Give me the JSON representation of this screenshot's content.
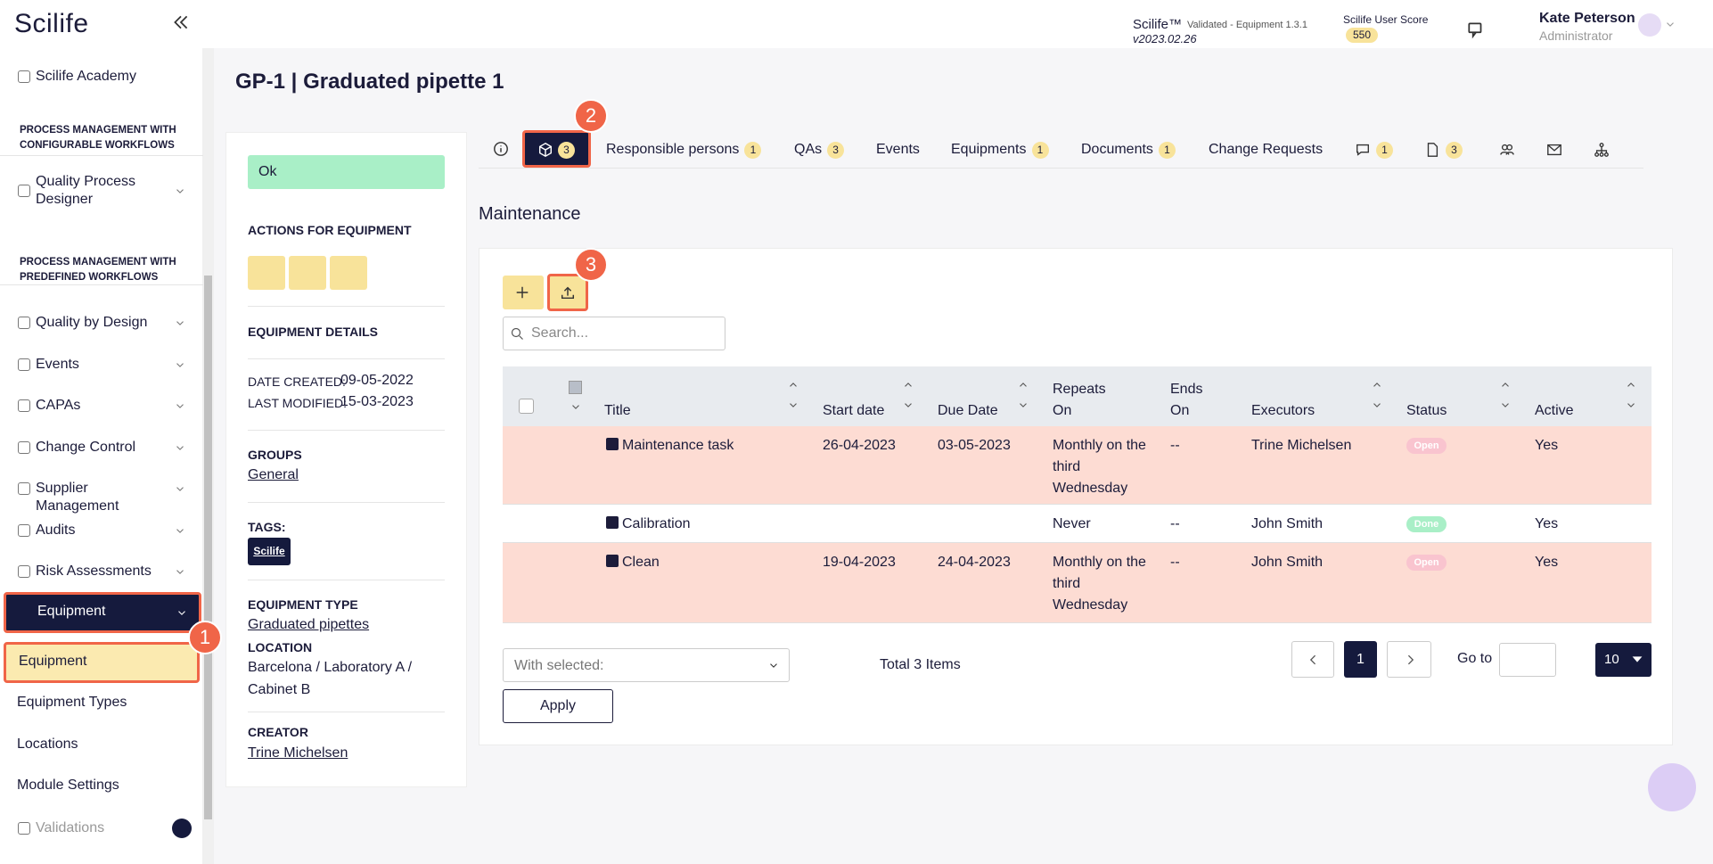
{
  "header": {
    "brand": "Scilife",
    "product": "Scilife™",
    "validated": "Validated - Equipment 1.3.1",
    "version": "v2023.02.26",
    "score_label": "Scilife User Score",
    "score": "550",
    "user": "Kate Peterson",
    "role": "Administrator"
  },
  "sidebar": {
    "items": [
      {
        "label": "Scilife Academy",
        "kind": "item"
      },
      {
        "label": "PROCESS MANAGEMENT WITH CONFIGURABLE WORKFLOWS",
        "kind": "section"
      },
      {
        "label": "Quality Process Designer",
        "kind": "group"
      },
      {
        "label": "PROCESS MANAGEMENT WITH PREDEFINED WORKFLOWS",
        "kind": "section"
      },
      {
        "label": "Quality by Design",
        "kind": "group"
      },
      {
        "label": "Events",
        "kind": "group"
      },
      {
        "label": "CAPAs",
        "kind": "group"
      },
      {
        "label": "Change Control",
        "kind": "group"
      },
      {
        "label": "Supplier Management",
        "kind": "group"
      },
      {
        "label": "Audits",
        "kind": "group"
      },
      {
        "label": "Risk Assessments",
        "kind": "group"
      },
      {
        "label": "Equipment",
        "kind": "active"
      },
      {
        "label": "Equipment",
        "kind": "subactive"
      },
      {
        "label": "Equipment Types",
        "kind": "sub"
      },
      {
        "label": "Locations",
        "kind": "sub"
      },
      {
        "label": "Module Settings",
        "kind": "sub"
      },
      {
        "label": "Validations",
        "kind": "locked"
      }
    ]
  },
  "page_title": "GP-1 | Graduated pipette 1",
  "panel": {
    "status": "Ok",
    "actions_title": "ACTIONS FOR EQUIPMENT",
    "details_title": "EQUIPMENT DETAILS",
    "date_created_label": "DATE CREATED:",
    "date_created": "09-05-2022",
    "last_modified_label": "LAST MODIFIED:",
    "last_modified": "15-03-2023",
    "groups_label": "GROUPS",
    "groups": "General",
    "tags_label": "TAGS:",
    "tag": "Scilife",
    "type_label": "EQUIPMENT TYPE",
    "type": "Graduated pipettes",
    "location_label": "LOCATION",
    "location_line1": "Barcelona / Laboratory A /",
    "location_line2": "Cabinet B",
    "creator_label": "CREATOR",
    "creator": "Trine Michelsen"
  },
  "tabs": {
    "active_count": "3",
    "items": [
      {
        "label": "Responsible persons",
        "count": "1"
      },
      {
        "label": "QAs",
        "count": "3"
      },
      {
        "label": "Events"
      },
      {
        "label": "Equipments",
        "count": "1"
      },
      {
        "label": "Documents",
        "count": "1"
      },
      {
        "label": "Change Requests"
      },
      {
        "icon": "comment",
        "count": "1"
      },
      {
        "icon": "doc",
        "count": "3"
      },
      {
        "icon": "people"
      },
      {
        "icon": "mail"
      },
      {
        "icon": "tree"
      }
    ]
  },
  "section_title": "Maintenance",
  "search_placeholder": "Search...",
  "table": {
    "columns": [
      "Title",
      "Start date",
      "Due Date",
      "Repeats On",
      "Ends On",
      "Executors",
      "Status",
      "Active"
    ],
    "rows": [
      [
        "Maintenance task",
        "26-04-2023",
        "03-05-2023",
        "Monthly on the third Wednesday",
        "--",
        "Trine Michelsen",
        "Open",
        "Yes"
      ],
      [
        "Calibration",
        "",
        "",
        "Never",
        "--",
        "John Smith",
        "Done",
        "Yes"
      ],
      [
        "Clean",
        "19-04-2023",
        "24-04-2023",
        "Monthly on the third Wednesday",
        "--",
        "John Smith",
        "Open",
        "Yes"
      ]
    ]
  },
  "footer": {
    "with_selected": "With selected:",
    "total": "Total 3 Items",
    "page": "1",
    "goto": "Go to",
    "per_page": "10",
    "apply": "Apply"
  },
  "callouts": [
    "1",
    "2",
    "3"
  ]
}
